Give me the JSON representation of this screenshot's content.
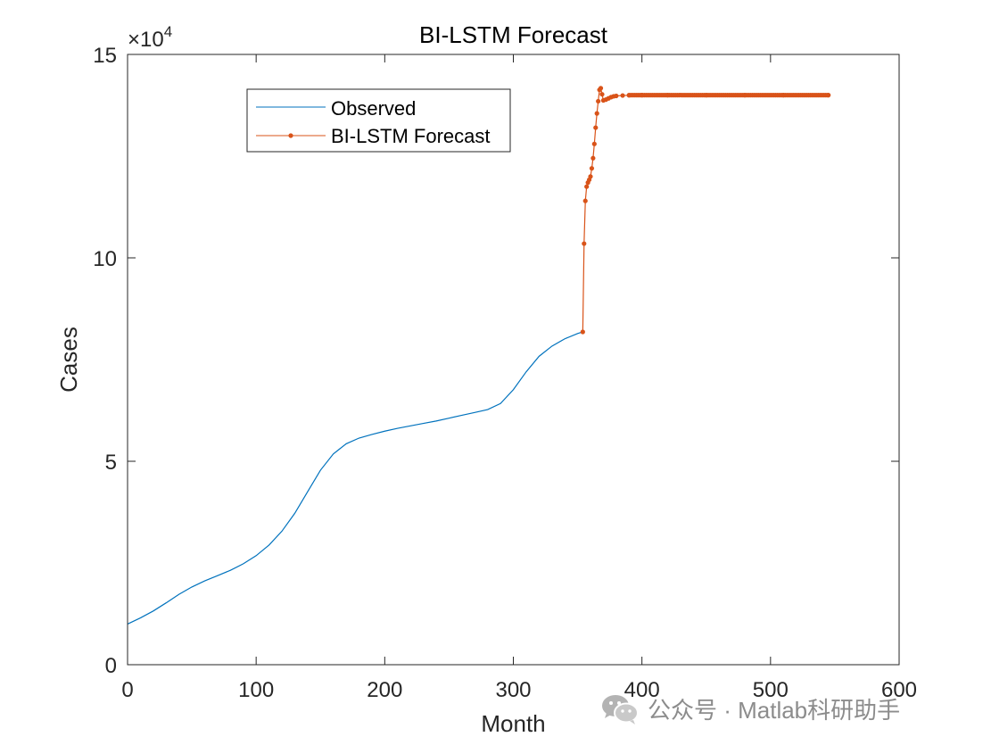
{
  "chart_data": {
    "type": "line",
    "title": "BI-LSTM Forecast",
    "xlabel": "Month",
    "ylabel": "Cases",
    "xlim": [
      0,
      600
    ],
    "ylim": [
      0,
      150000
    ],
    "xticks": [
      0,
      100,
      200,
      300,
      400,
      500,
      600
    ],
    "yticks": [
      0,
      50000,
      100000,
      150000
    ],
    "ytick_labels": [
      "0",
      "5",
      "10",
      "15"
    ],
    "y_exponent_label": "×10",
    "y_exponent_power": "4",
    "grid": false,
    "legend_position": "top-left",
    "series": [
      {
        "name": "Observed",
        "color": "#0072bd",
        "marker": "none",
        "x": [
          0,
          10,
          20,
          30,
          40,
          50,
          60,
          70,
          80,
          90,
          100,
          110,
          120,
          130,
          140,
          150,
          160,
          170,
          180,
          190,
          200,
          210,
          220,
          230,
          240,
          250,
          260,
          270,
          280,
          290,
          300,
          310,
          320,
          330,
          340,
          350,
          354
        ],
        "y": [
          10000,
          11500,
          13200,
          15200,
          17300,
          19100,
          20600,
          21900,
          23200,
          24800,
          26800,
          29400,
          32800,
          37200,
          42500,
          47800,
          51800,
          54300,
          55700,
          56600,
          57400,
          58100,
          58700,
          59300,
          59900,
          60600,
          61300,
          62000,
          62700,
          64200,
          67600,
          72000,
          75800,
          78300,
          80100,
          81400,
          81800
        ]
      },
      {
        "name": "BI-LSTM Forecast",
        "color": "#d95319",
        "marker": "dot",
        "x": [
          354,
          355,
          356,
          357,
          358,
          359,
          360,
          361,
          362,
          363,
          364,
          365,
          366,
          367,
          368,
          369,
          370,
          372,
          374,
          376,
          378,
          380,
          385,
          390,
          400,
          420,
          450,
          480,
          510,
          545
        ],
        "y": [
          81800,
          103500,
          114000,
          117500,
          118500,
          119200,
          120000,
          122000,
          124500,
          128000,
          132000,
          135500,
          138500,
          141300,
          141700,
          140200,
          138700,
          138900,
          139200,
          139500,
          139700,
          139800,
          139900,
          139950,
          140000,
          140000,
          140000,
          140000,
          140000,
          140000
        ]
      }
    ]
  },
  "watermark": {
    "text": "公众号 · Matlab科研助手",
    "icon": "wechat-icon"
  }
}
